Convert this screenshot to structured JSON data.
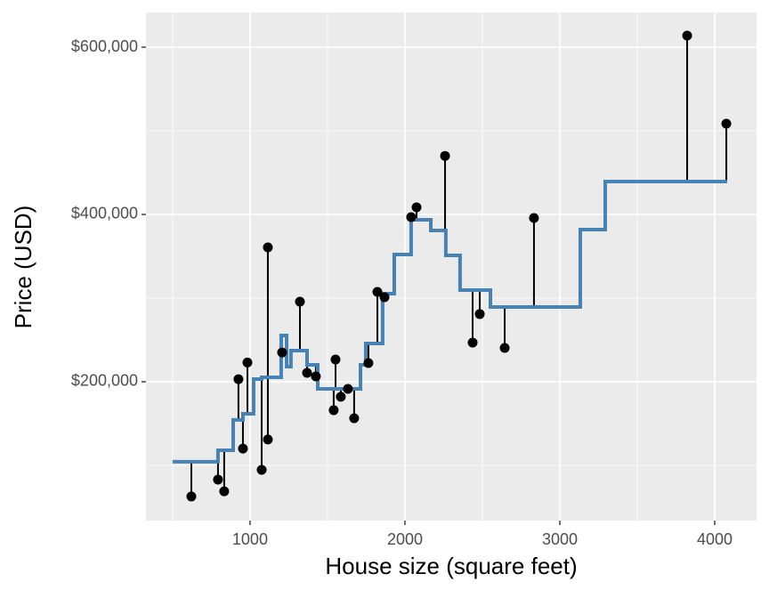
{
  "chart_data": {
    "type": "scatter",
    "x_label": "House size (square feet)",
    "y_label": "Price (USD)",
    "xlim": [
      328,
      4270
    ],
    "ylim": [
      34000,
      641500
    ],
    "xticks": [
      1000,
      2000,
      3000,
      4000
    ],
    "xminor": [
      500,
      1500,
      2500,
      3500
    ],
    "yticks": [
      {
        "value": 200000,
        "label": "$200,000"
      },
      {
        "value": 400000,
        "label": "$400,000"
      },
      {
        "value": 600000,
        "label": "$600,000"
      }
    ],
    "yminor": [
      100000,
      300000,
      500000
    ],
    "grid": true,
    "point_color": "#000000",
    "line_color": "#4682b4",
    "x": [
      621,
      793,
      833,
      925,
      954,
      983,
      1075,
      1115,
      1115,
      1207,
      1322,
      1368,
      1425,
      1540,
      1552,
      1586,
      1632,
      1672,
      1764,
      1822,
      1868,
      2040,
      2075,
      2259,
      2437,
      2483,
      2644,
      2833,
      3822,
      4075
    ],
    "values": [
      62800,
      83000,
      69000,
      203000,
      120000,
      223000,
      94700,
      360600,
      131000,
      235000,
      295700,
      210600,
      206400,
      166000,
      226600,
      182000,
      191500,
      156400,
      222300,
      307400,
      301000,
      396800,
      408500,
      470000,
      246800,
      280900,
      240400,
      395700,
      613800,
      508500
    ],
    "fitted": [
      104300,
      118100,
      118100,
      154300,
      154300,
      161700,
      203200,
      205300,
      205300,
      255300,
      237200,
      220200,
      220200,
      191500,
      191500,
      191500,
      191500,
      191500,
      245700,
      245700,
      305300,
      352100,
      393600,
      351100,
      309600,
      309600,
      289400,
      289400,
      439400,
      439400
    ],
    "fit_line": {
      "x": [
        500,
        793,
        793,
        891,
        891,
        954,
        954,
        1023,
        1023,
        1075,
        1075,
        1201,
        1201,
        1236,
        1236,
        1264,
        1264,
        1368,
        1368,
        1437,
        1437,
        1713,
        1713,
        1747,
        1747,
        1856,
        1856,
        1931,
        1931,
        2040,
        2040,
        2167,
        2167,
        2264,
        2264,
        2356,
        2356,
        2552,
        2552,
        3132,
        3132,
        3293,
        3293,
        4080
      ],
      "y": [
        104300,
        104300,
        118100,
        118100,
        154300,
        154300,
        161700,
        161700,
        203200,
        203200,
        205300,
        205300,
        255300,
        255300,
        218100,
        218100,
        237200,
        237200,
        220200,
        220200,
        191500,
        191500,
        220200,
        220200,
        245700,
        245700,
        305300,
        305300,
        352100,
        352100,
        393600,
        393600,
        380900,
        380900,
        351100,
        351100,
        309600,
        309600,
        289400,
        289400,
        381900,
        381900,
        439400,
        439400
      ]
    }
  }
}
